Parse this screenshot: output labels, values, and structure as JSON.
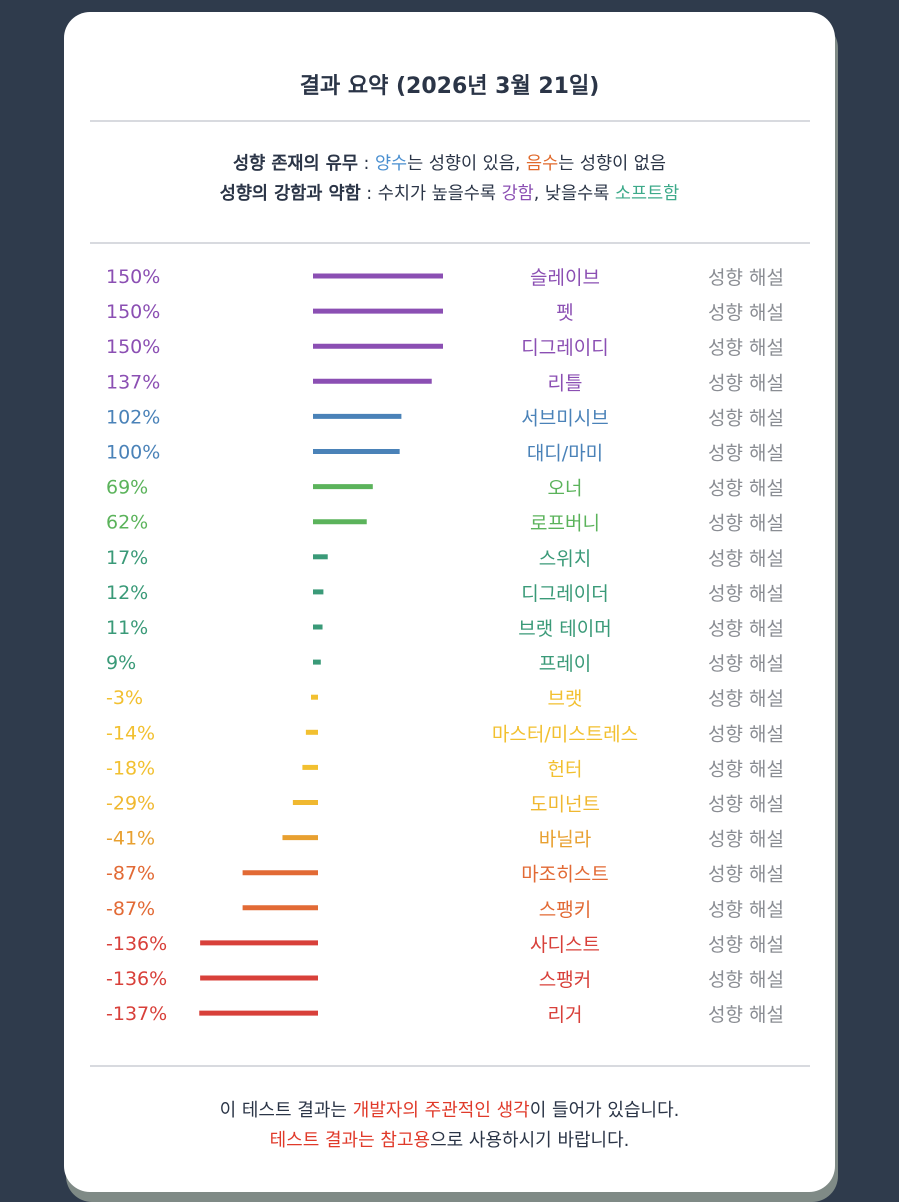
{
  "title": "결과 요약 (2026년 3월 21일)",
  "legend": {
    "line1": {
      "head": "성향 존재의 유무",
      "sep": " : ",
      "pos_word": "양수",
      "pos_rest": "는 성향이 있음, ",
      "neg_word": "음수",
      "neg_rest": "는 성향이 없음"
    },
    "line2": {
      "head": "성향의 강함과 약함",
      "sep": " : 수치가 높을수록 ",
      "strong_word": "강함",
      "mid": ", 낮을수록 ",
      "soft_word": "소프트함"
    },
    "colors": {
      "pos": "#4a8fd0",
      "neg": "#e06a2c",
      "strong": "#8b4fb3",
      "soft": "#3daa8a"
    }
  },
  "chart_data": {
    "type": "bar",
    "orientation": "horizontal-diverging",
    "link_label": "성향 해설",
    "categories": [
      "슬레이브",
      "펫",
      "디그레이디",
      "리틀",
      "서브미시브",
      "대디/마미",
      "오너",
      "로프버니",
      "스위치",
      "디그레이더",
      "브랫 테이머",
      "프레이",
      "브랫",
      "마스터/미스트레스",
      "헌터",
      "도미넌트",
      "바닐라",
      "마조히스트",
      "스팽키",
      "사디스트",
      "스팽커",
      "리거"
    ],
    "values": [
      150,
      150,
      150,
      137,
      102,
      100,
      69,
      62,
      17,
      12,
      11,
      9,
      -3,
      -14,
      -18,
      -29,
      -41,
      -87,
      -87,
      -136,
      -136,
      -137
    ],
    "labels": [
      "150%",
      "150%",
      "150%",
      "137%",
      "102%",
      "100%",
      "69%",
      "62%",
      "17%",
      "12%",
      "11%",
      "9%",
      "-3%",
      "-14%",
      "-18%",
      "-29%",
      "-41%",
      "-87%",
      "-87%",
      "-136%",
      "-136%",
      "-137%"
    ],
    "colors": [
      "#8b4fb3",
      "#8b4fb3",
      "#8b4fb3",
      "#8b4fb3",
      "#4a82b8",
      "#4a82b8",
      "#5bb35b",
      "#5bb35b",
      "#3a9a78",
      "#3a9a78",
      "#3a9a78",
      "#3a9a78",
      "#f2c030",
      "#f2c030",
      "#f2c030",
      "#f0b830",
      "#e8a030",
      "#e26a35",
      "#e26a35",
      "#d8403a",
      "#d8403a",
      "#d8403a"
    ]
  },
  "footer": {
    "line1_a": "이 테스트 결과는 ",
    "line1_red": "개발자의 주관적인 생각",
    "line1_b": "이 들어가 있습니다.",
    "line2_red": "테스트 결과는 참고용",
    "line2_b": "으로 사용하시기 바랍니다.",
    "red": "#e03a2a"
  }
}
